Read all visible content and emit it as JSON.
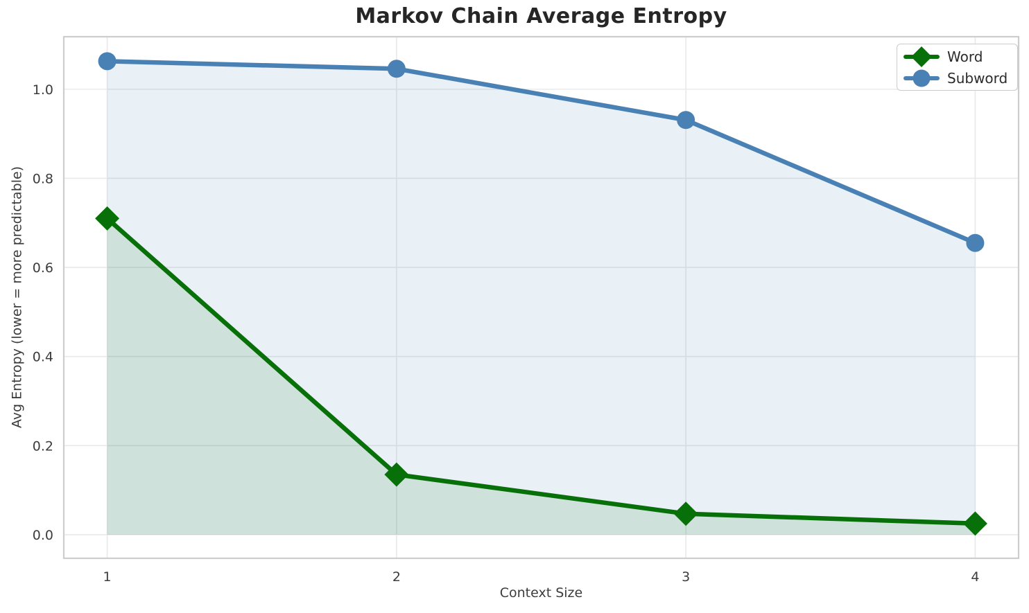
{
  "chart_data": {
    "type": "line",
    "title": "Markov Chain Average Entropy",
    "xlabel": "Context Size",
    "ylabel": "Avg Entropy (lower = more predictable)",
    "x": [
      1,
      2,
      3,
      4
    ],
    "series": [
      {
        "name": "Word",
        "color": "#087008",
        "marker": "diamond",
        "values": [
          0.71,
          0.135,
          0.047,
          0.025
        ],
        "fill_below": true
      },
      {
        "name": "Subword",
        "color": "#4a81b4",
        "marker": "circle",
        "values": [
          1.063,
          1.046,
          0.931,
          0.655
        ],
        "fill_below": true
      }
    ],
    "xticks": {
      "values": [
        1,
        2,
        3,
        4
      ],
      "labels": [
        "1",
        "2",
        "3",
        "4"
      ]
    },
    "yticks": {
      "values": [
        0.0,
        0.2,
        0.4,
        0.6,
        0.8,
        1.0
      ],
      "labels": [
        "0.0",
        "0.2",
        "0.4",
        "0.6",
        "0.8",
        "1.0"
      ]
    },
    "xlim": [
      0.85,
      4.15
    ],
    "ylim": [
      -0.053,
      1.118
    ],
    "fill_baseline": 0,
    "fill_opacity": 0.12,
    "grid": true,
    "legend_position": "upper right",
    "colors": {
      "grid": "#e9e9e9",
      "spine": "#cdcdcd",
      "tick_text": "#3c3c3c",
      "title_text": "#262626",
      "background": "#ffffff"
    }
  }
}
